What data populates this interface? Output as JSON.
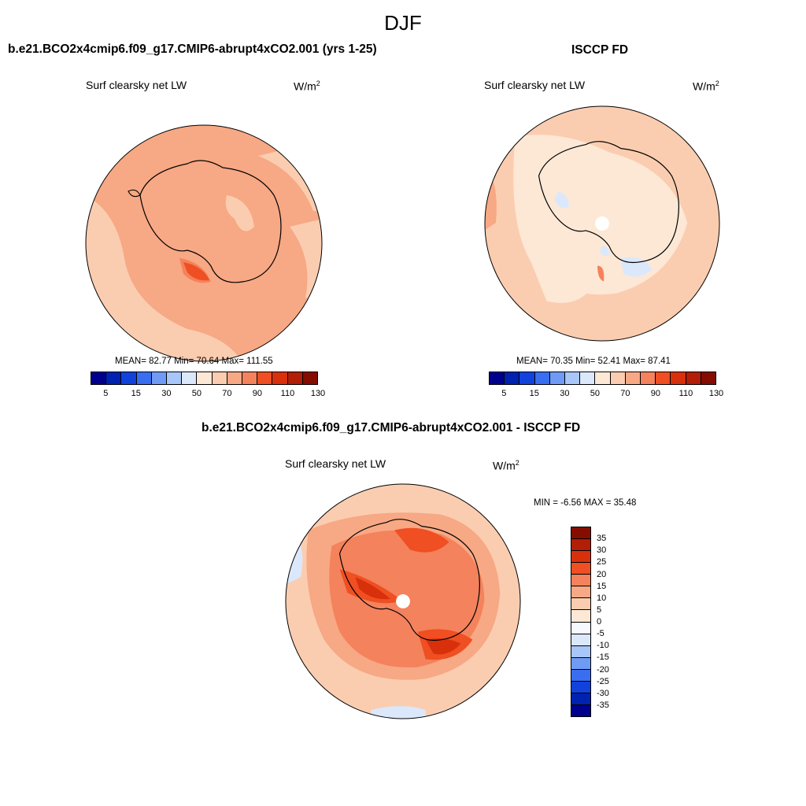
{
  "suptitle": "DJF",
  "panels": [
    {
      "title": "b.e21.BCO2x4cmip6.f09_g17.CMIP6-abrupt4xCO2.001 (yrs 1-25)",
      "variable": "Surf clearsky net LW",
      "units": "W/m",
      "units_sup": "2",
      "stats": "MEAN=  82.77  Min=  70.64  Max= 111.55",
      "stats_values": {
        "mean": 82.77,
        "min": 70.64,
        "max": 111.55
      },
      "colorbar_labels": [
        "5",
        "15",
        "30",
        "50",
        "70",
        "90",
        "110",
        "130"
      ]
    },
    {
      "title": "ISCCP FD",
      "variable": "Surf clearsky net LW",
      "units": "W/m",
      "units_sup": "2",
      "stats": "MEAN=  70.35  Min=  52.41  Max=  87.41",
      "stats_values": {
        "mean": 70.35,
        "min": 52.41,
        "max": 87.41
      },
      "colorbar_labels": [
        "5",
        "15",
        "30",
        "50",
        "70",
        "90",
        "110",
        "130"
      ]
    },
    {
      "title": "b.e21.BCO2x4cmip6.f09_g17.CMIP6-abrupt4xCO2.001 - ISCCP FD",
      "variable": "Surf clearsky net LW",
      "units": "W/m",
      "units_sup": "2",
      "stats": "MIN =  -6.56 MAX =  35.48",
      "stats_values": {
        "min": -6.56,
        "max": 35.48
      },
      "colorbar_labels": [
        "35",
        "30",
        "25",
        "20",
        "15",
        "10",
        "5",
        "0",
        "-5",
        "-10",
        "-15",
        "-20",
        "-25",
        "-30",
        "-35"
      ]
    }
  ],
  "colors": {
    "abs_scale": [
      "#00008c",
      "#0022b0",
      "#1142dc",
      "#3a6ef0",
      "#6f9bf5",
      "#a8c6f7",
      "#dbe8fb",
      "#fde8d6",
      "#fbcdb0",
      "#f7a884",
      "#f4825c",
      "#ef4f22",
      "#d9300c",
      "#b21e06",
      "#850d00"
    ],
    "diff_scale": [
      "#850d00",
      "#b21e06",
      "#d9300c",
      "#ef4f22",
      "#f4825c",
      "#f7a884",
      "#fbcdb0",
      "#fde8d6",
      "#f6f9ff",
      "#dbe8fb",
      "#a8c6f7",
      "#6f9bf5",
      "#3a6ef0",
      "#1142dc",
      "#0022b0",
      "#00008c"
    ]
  }
}
